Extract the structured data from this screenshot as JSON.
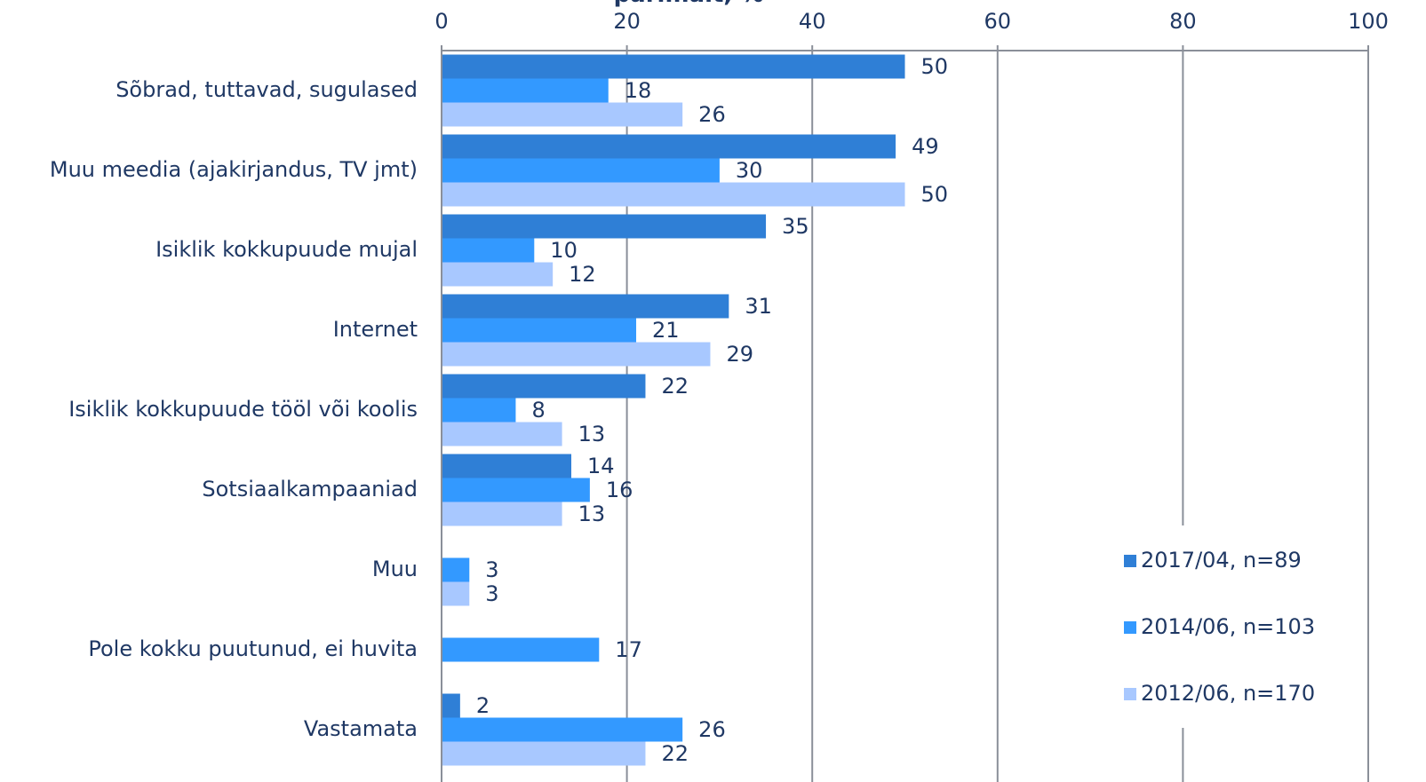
{
  "chart_data": {
    "type": "bar",
    "orientation": "horizontal",
    "title": "parimalt, %",
    "categories": [
      "Sõbrad, tuttavad, sugulased",
      "Muu meedia (ajakirjandus, TV jmt)",
      "Isiklik kokkupuude mujal",
      "Internet",
      "Isiklik kokkupuude tööl või koolis",
      "Sotsiaalkampaaniad",
      "Muu",
      "Pole kokku puutunud, ei huvita",
      "Vastamata"
    ],
    "series": [
      {
        "name": "2017/04, n=89",
        "color": "#2f7fd6",
        "values": [
          50,
          49,
          35,
          31,
          22,
          14,
          null,
          null,
          2
        ]
      },
      {
        "name": "2014/06, n=103",
        "color": "#3399ff",
        "values": [
          18,
          30,
          10,
          21,
          8,
          16,
          3,
          17,
          26
        ]
      },
      {
        "name": "2012/06, n=170",
        "color": "#a8c8ff",
        "values": [
          26,
          50,
          12,
          29,
          13,
          13,
          3,
          null,
          22
        ]
      }
    ],
    "xlim": [
      0,
      100
    ],
    "xticks": [
      0,
      20,
      40,
      60,
      80,
      100
    ],
    "grid": true,
    "legend": "right"
  }
}
